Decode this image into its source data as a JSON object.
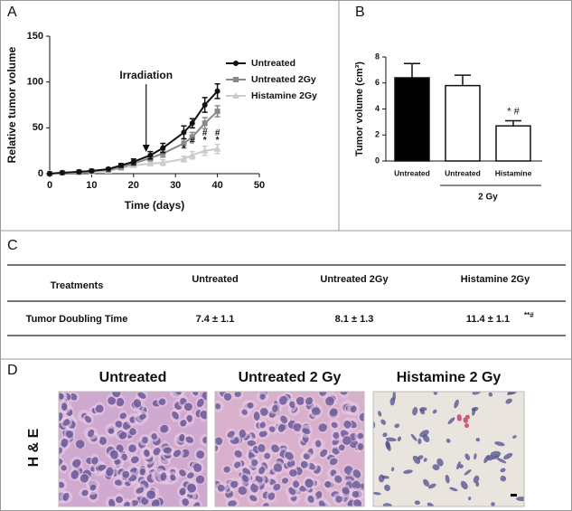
{
  "panel_labels": [
    "A",
    "B",
    "C",
    "D"
  ],
  "chart_data": [
    {
      "type": "line",
      "xlabel": "Time (days)",
      "ylabel": "Relative tumor volume",
      "x": [
        0,
        3,
        7,
        10,
        14,
        17,
        20,
        24,
        27,
        32,
        34,
        37,
        40
      ],
      "xlim": [
        0,
        50
      ],
      "xticks": [
        0,
        10,
        20,
        30,
        40,
        50
      ],
      "ylim": [
        0,
        150
      ],
      "yticks": [
        0,
        50,
        100,
        150
      ],
      "series": [
        {
          "name": "Untreated",
          "color": "#111111",
          "marker": "circle",
          "values": [
            0,
            1,
            2,
            3,
            5,
            9,
            13,
            20,
            28,
            45,
            55,
            75,
            90
          ],
          "errors": [
            0,
            0.5,
            1,
            1,
            1,
            2,
            3,
            4,
            5,
            7,
            5,
            8,
            8
          ]
        },
        {
          "name": "Untreated 2Gy",
          "color": "#888888",
          "marker": "square",
          "values": [
            0,
            1,
            2,
            3,
            4,
            7,
            11,
            17,
            22,
            33,
            40,
            55,
            68
          ],
          "errors": [
            0,
            0.5,
            1,
            1,
            1,
            2,
            2,
            3,
            4,
            5,
            5,
            6,
            6
          ]
        },
        {
          "name": "Histamine 2Gy",
          "color": "#cccccc",
          "marker": "triangle",
          "values": [
            0,
            1,
            1,
            2,
            3,
            6,
            9,
            11,
            12,
            16,
            20,
            25,
            27
          ],
          "errors": [
            0,
            0.5,
            0.5,
            1,
            1,
            1,
            2,
            2,
            3,
            3,
            4,
            5,
            5
          ]
        }
      ],
      "arrow": {
        "text": "Irradiation",
        "x": 23
      },
      "annotations": [
        {
          "text": "*",
          "x": 32,
          "y": 27
        },
        {
          "text": "#",
          "x": 34,
          "y": 35
        },
        {
          "text": "#",
          "x": 37,
          "y": 44
        },
        {
          "text": "*",
          "x": 37,
          "y": 36
        },
        {
          "text": "#",
          "x": 40,
          "y": 44
        },
        {
          "text": "*",
          "x": 40,
          "y": 36
        }
      ]
    },
    {
      "type": "bar",
      "ylabel": "Tumor volume (cm³)",
      "categories": [
        "Untreated",
        "Untreated",
        "Histamine"
      ],
      "values": [
        6.4,
        5.8,
        2.7
      ],
      "errors": [
        1.1,
        0.8,
        0.4
      ],
      "colors": [
        "#000000",
        "#ffffff",
        "#ffffff"
      ],
      "ylim": [
        0,
        8
      ],
      "yticks": [
        0,
        2,
        4,
        6,
        8
      ],
      "group_label": "2 Gy",
      "annotation": "* #"
    }
  ],
  "table": {
    "header": [
      "Treatments",
      "Untreated",
      "Untreated 2Gy",
      "Histamine 2Gy"
    ],
    "rows": [
      [
        "Tumor Doubling Time",
        "7.4 ± 1.1",
        "8.1 ± 1.3",
        "11.4 ± 1.1"
      ]
    ],
    "mark": "**#"
  },
  "micrographs": {
    "titles": [
      "Untreated",
      "Untreated 2 Gy",
      "Histamine 2 Gy"
    ],
    "stain": "H & E"
  }
}
